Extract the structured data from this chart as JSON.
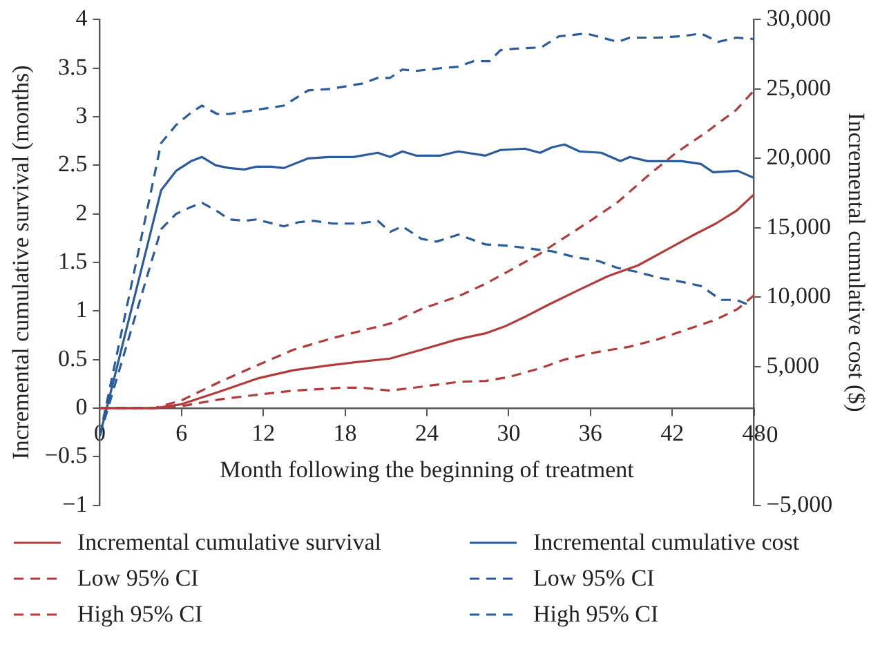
{
  "chart_data": {
    "type": "line",
    "xlabel": "Month following the beginning of treatment",
    "ylabel": "Incremental cumulative survival (months)",
    "y2label": "Incremental cumulative cost ($)",
    "xlim": [
      0,
      48
    ],
    "xticks": [
      0,
      6,
      12,
      18,
      24,
      30,
      36,
      42,
      48
    ],
    "ylim": [
      -1,
      4
    ],
    "yticks": [
      {
        "value": -1,
        "label": "−1"
      },
      {
        "value": -0.5,
        "label": "−0.5"
      },
      0,
      0.5,
      1,
      1.5,
      2,
      2.5,
      3,
      3.5,
      4
    ],
    "y2lim": [
      -5000,
      30000
    ],
    "y2ticks": [
      {
        "value": -5000,
        "label": "−5,000"
      },
      0,
      {
        "value": 5000,
        "label": "5,000"
      },
      {
        "value": 10000,
        "label": "10,000"
      },
      {
        "value": 15000,
        "label": "15,000"
      },
      {
        "value": 20000,
        "label": "20,000"
      },
      {
        "value": 25000,
        "label": "25,000"
      },
      {
        "value": 30000,
        "label": "30,000"
      }
    ],
    "grid": false,
    "legend": "bottom",
    "marker": "none",
    "series": [
      {
        "name": "Incremental cumulative survival",
        "color": "#b23b3b",
        "line_style": "solid",
        "x": [
          0,
          4,
          6,
          8.8,
          11.7,
          14.2,
          16.8,
          18.6,
          21.3,
          23.6,
          26.3,
          28.3,
          29.7,
          31.2,
          33,
          35.2,
          37.3,
          39.5,
          41.6,
          43.4,
          45.2,
          46.7,
          48
        ],
        "values": [
          0,
          0,
          0.04,
          0.17,
          0.31,
          0.39,
          0.44,
          0.47,
          0.51,
          0.6,
          0.71,
          0.77,
          0.84,
          0.94,
          1.07,
          1.22,
          1.36,
          1.47,
          1.63,
          1.77,
          1.9,
          2.03,
          2.2
        ]
      },
      {
        "name": "Low 95% CI",
        "color": "#b23b3b",
        "line_style": "dashed",
        "x": [
          0,
          4,
          6,
          8.8,
          11.7,
          14.2,
          17.8,
          19.3,
          21.3,
          23.6,
          26.3,
          28.3,
          30,
          32.3,
          34.1,
          36.6,
          38.8,
          41,
          43.1,
          45.2,
          46.8,
          48
        ],
        "values": [
          0,
          0,
          0.02,
          0.09,
          0.14,
          0.18,
          0.21,
          0.21,
          0.18,
          0.22,
          0.27,
          0.28,
          0.32,
          0.41,
          0.5,
          0.58,
          0.63,
          0.71,
          0.81,
          0.91,
          1.02,
          1.16
        ]
      },
      {
        "name": "High 95% CI",
        "color": "#b23b3b",
        "line_style": "dashed",
        "x": [
          0,
          4,
          6,
          8.8,
          11.7,
          14.2,
          16.8,
          19.3,
          21.3,
          23.6,
          26.3,
          28.3,
          30,
          32.3,
          33.7,
          35.8,
          38,
          40.2,
          42.3,
          44.5,
          46.7,
          48
        ],
        "values": [
          0,
          0,
          0.08,
          0.27,
          0.45,
          0.6,
          0.71,
          0.8,
          0.87,
          1.02,
          1.15,
          1.28,
          1.41,
          1.59,
          1.72,
          1.91,
          2.12,
          2.39,
          2.63,
          2.84,
          3.07,
          3.27
        ]
      },
      {
        "name": "Incremental cumulative cost",
        "color": "#2a5b9a",
        "line_style": "solid",
        "axis": "y2",
        "x": [
          0,
          4.5,
          5.6,
          6.7,
          7.5,
          8.5,
          9.5,
          10.6,
          11.5,
          12.6,
          13.5,
          15.3,
          16.8,
          18.6,
          20.4,
          21.3,
          22.2,
          23.2,
          25,
          26.3,
          28.3,
          29.4,
          31.2,
          32.3,
          33.2,
          34.1,
          35.2,
          36.8,
          38.2,
          38.9,
          40.2,
          42.7,
          44.1,
          45,
          46.8,
          48
        ],
        "values": [
          0,
          17700,
          19100,
          19800,
          20100,
          19500,
          19300,
          19200,
          19400,
          19400,
          19300,
          20000,
          20100,
          20100,
          20400,
          20100,
          20500,
          20200,
          20200,
          20500,
          20200,
          20600,
          20700,
          20400,
          20800,
          21000,
          20500,
          20400,
          19800,
          20100,
          19800,
          19800,
          19600,
          19000,
          19100,
          18600
        ]
      },
      {
        "name": "Low 95% CI",
        "color": "#2a5b9a",
        "line_style": "dashed",
        "axis": "y2",
        "x": [
          0,
          4.5,
          5.6,
          6.7,
          7.5,
          8.6,
          9.5,
          10.6,
          11.5,
          13.5,
          14.6,
          15.7,
          17.1,
          19,
          20.4,
          21.3,
          22.2,
          23.6,
          24.7,
          26.3,
          28.3,
          30,
          32.3,
          33.2,
          34.8,
          36.6,
          38,
          39.5,
          41,
          42.7,
          44.1,
          45.6,
          46.7,
          48
        ],
        "values": [
          0,
          14900,
          16000,
          16500,
          16800,
          16200,
          15600,
          15500,
          15600,
          15100,
          15400,
          15500,
          15300,
          15300,
          15500,
          14700,
          15100,
          14200,
          14000,
          14500,
          13800,
          13700,
          13400,
          13300,
          12900,
          12600,
          12100,
          11800,
          11400,
          11100,
          10800,
          9800,
          9800,
          9300
        ]
      },
      {
        "name": "High 95% CI",
        "color": "#2a5b9a",
        "line_style": "dashed",
        "axis": "y2",
        "x": [
          0,
          4.5,
          5.6,
          6.7,
          7.5,
          8.6,
          9.5,
          11.5,
          13.5,
          15.3,
          16.9,
          19.3,
          20.4,
          21.3,
          22.2,
          23.2,
          25,
          26.3,
          27.4,
          28.6,
          29.4,
          30.4,
          32.4,
          33.7,
          35.7,
          38,
          38.9,
          40.9,
          42.7,
          44.1,
          45.4,
          46.7,
          48
        ],
        "values": [
          0,
          21100,
          22400,
          23300,
          23800,
          23200,
          23200,
          23500,
          23800,
          24900,
          25000,
          25400,
          25800,
          25800,
          26400,
          26300,
          26500,
          26600,
          27000,
          27000,
          27800,
          27900,
          28000,
          28800,
          29000,
          28400,
          28700,
          28700,
          28800,
          29000,
          28400,
          28700,
          28600
        ]
      }
    ]
  }
}
